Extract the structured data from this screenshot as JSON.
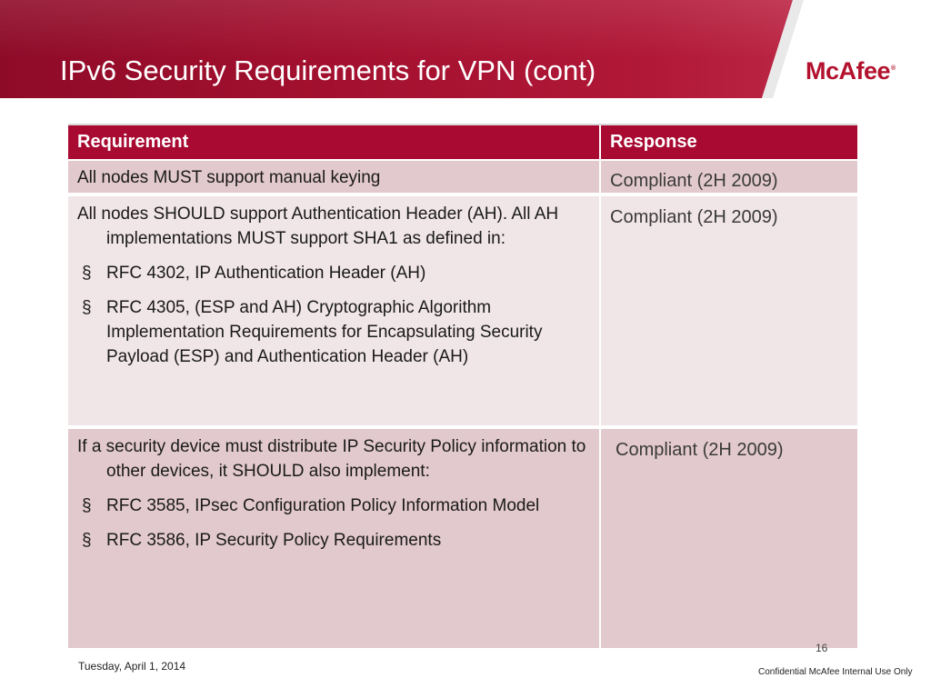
{
  "header": {
    "title": "IPv6 Security Requirements for VPN (cont)",
    "logo_text": "McAfee",
    "logo_mark": "®",
    "brand_color": "#a80a32"
  },
  "table": {
    "headers": [
      "Requirement",
      "Response"
    ],
    "rows": [
      {
        "requirement": {
          "lead": "All nodes MUST support manual keying",
          "bullets": []
        },
        "response": "Compliant (2H 2009)"
      },
      {
        "requirement": {
          "lead": "All nodes SHOULD support Authentication Header (AH). All AH implementations MUST support SHA1 as defined in:",
          "bullets": [
            "RFC 4302, IP Authentication Header (AH)",
            "RFC 4305, (ESP and AH) Cryptographic Algorithm Implementation Requirements for Encapsulating Security Payload (ESP) and Authentication Header (AH)"
          ]
        },
        "response": "Compliant (2H 2009)"
      },
      {
        "requirement": {
          "lead": "If a security device must distribute IP Security Policy information to other devices, it SHOULD also implement:",
          "bullets": [
            "RFC 3585, IPsec Configuration Policy Information Model",
            "RFC 3586, IP Security Policy Requirements"
          ]
        },
        "response": "Compliant (2H 2009)"
      }
    ],
    "bullet_symbol": "§"
  },
  "footer": {
    "page_number": "16",
    "date": "Tuesday, April 1, 2014",
    "confidential": "Confidential McAfee Internal Use Only"
  }
}
